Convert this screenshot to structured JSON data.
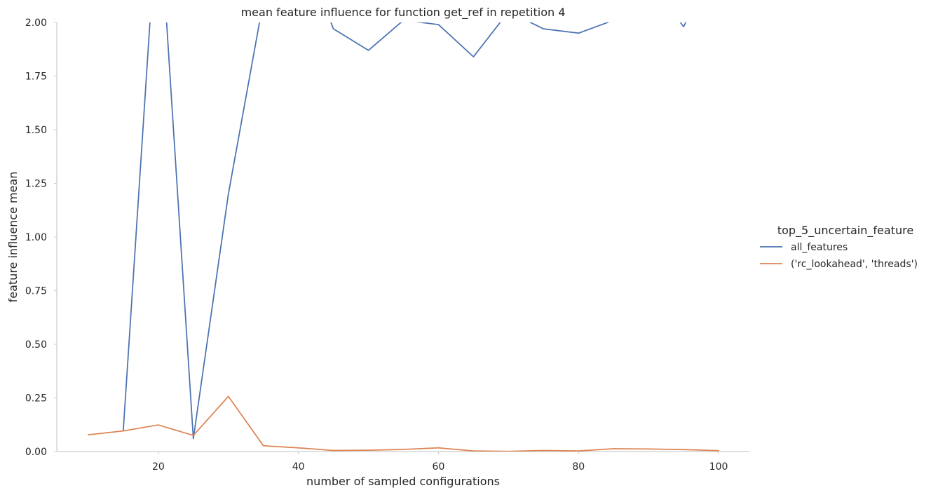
{
  "chart_data": {
    "type": "line",
    "title": "mean feature influence for function get_ref in repetition 4",
    "xlabel": "number of sampled configurations",
    "ylabel": "feature influence mean",
    "xlim": [
      5.5,
      104.5
    ],
    "ylim": [
      0,
      2.0
    ],
    "xticks": [
      20,
      40,
      60,
      80,
      100
    ],
    "yticks": [
      0.0,
      0.25,
      0.5,
      0.75,
      1.0,
      1.25,
      1.5,
      1.75,
      2.0
    ],
    "ytick_labels": [
      "0.00",
      "0.25",
      "0.50",
      "0.75",
      "1.00",
      "1.25",
      "1.50",
      "1.75",
      "2.00"
    ],
    "grid": false,
    "legend": {
      "title": "top_5_uncertain_feature",
      "placement": "right"
    },
    "x": [
      10,
      15,
      20,
      25,
      30,
      35,
      40,
      45,
      50,
      55,
      60,
      65,
      70,
      75,
      80,
      85,
      90,
      95,
      100
    ],
    "series": [
      {
        "name": "all_features",
        "color": "#4c72b0",
        "values": [
          null,
          0.1,
          2.6,
          0.06,
          1.2,
          2.1,
          2.4,
          1.97,
          1.87,
          2.01,
          1.99,
          1.84,
          2.05,
          1.97,
          1.95,
          2.01,
          2.2,
          1.98,
          2.3
        ]
      },
      {
        "name": "('rc_lookahead', 'threads')",
        "color": "#dd8452",
        "values": [
          0.078,
          0.096,
          0.124,
          0.075,
          0.257,
          0.027,
          0.017,
          0.005,
          0.006,
          0.01,
          0.017,
          0.003,
          0.001,
          0.005,
          0.003,
          0.013,
          0.012,
          0.009,
          0.004
        ]
      }
    ]
  }
}
